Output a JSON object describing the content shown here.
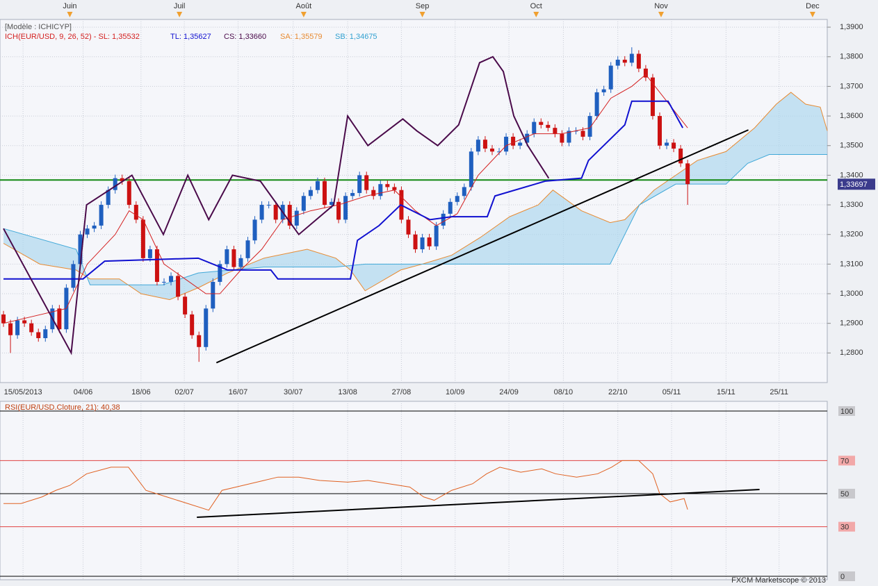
{
  "chart_data": [
    {
      "type": "candlestick",
      "model": "[Modèle : ICHICYP]",
      "indicator_labels": [
        {
          "text": "ICH(EUR/USD, 9, 26, 52) -  SL: 1,35532",
          "color": "#d42020"
        },
        {
          "text": "TL: 1,35627",
          "color": "#1010d0"
        },
        {
          "text": "CS: 1,33660",
          "color": "#4a0a4a"
        },
        {
          "text": "SA: 1,35579",
          "color": "#e88a30"
        },
        {
          "text": "SB: 1,34675",
          "color": "#30a0d0"
        }
      ],
      "up_color": "#1f5fbf",
      "down_color": "#cc1111",
      "open": [
        1.293,
        1.29,
        1.286,
        1.291,
        1.29,
        1.287,
        1.285,
        1.288,
        1.295,
        1.288,
        1.302,
        1.31,
        1.32,
        1.322,
        1.323,
        1.33,
        1.335,
        1.339,
        1.338,
        1.33,
        1.325,
        1.312,
        1.315,
        1.304,
        1.304,
        1.306,
        1.299,
        1.293,
        1.286,
        1.282,
        1.295,
        1.304,
        1.31,
        1.315,
        1.309,
        1.312,
        1.318,
        1.325,
        1.33,
        1.33,
        1.325,
        1.33,
        1.323,
        1.328,
        1.333,
        1.335,
        1.338,
        1.33,
        1.331,
        1.325,
        1.333,
        1.334,
        1.34,
        1.335,
        1.333,
        1.337,
        1.336,
        1.335,
        1.325,
        1.32,
        1.315,
        1.319,
        1.316,
        1.323,
        1.327,
        1.331,
        1.333,
        1.336,
        1.348,
        1.352,
        1.349,
        1.348,
        1.348,
        1.353,
        1.35,
        1.351,
        1.354,
        1.358,
        1.357,
        1.356,
        1.354,
        1.351,
        1.355,
        1.355,
        1.353,
        1.36,
        1.368,
        1.369,
        1.377,
        1.379,
        1.378,
        1.381,
        1.376,
        1.373,
        1.36,
        1.35,
        1.351,
        1.349,
        1.344
      ],
      "high": [
        1.2942,
        1.2912,
        1.2922,
        1.2922,
        1.2912,
        1.2882,
        1.2892,
        1.2962,
        1.2962,
        1.3032,
        1.3112,
        1.3212,
        1.3232,
        1.3242,
        1.3312,
        1.3362,
        1.3402,
        1.3402,
        1.3392,
        1.3312,
        1.3262,
        1.3162,
        1.3162,
        1.3052,
        1.3072,
        1.3072,
        1.3002,
        1.2942,
        1.2872,
        1.2962,
        1.3052,
        1.3112,
        1.3162,
        1.3162,
        1.3132,
        1.3192,
        1.3262,
        1.3312,
        1.3312,
        1.3312,
        1.3312,
        1.3312,
        1.3292,
        1.3342,
        1.3362,
        1.3392,
        1.3392,
        1.3322,
        1.3322,
        1.3342,
        1.3352,
        1.3412,
        1.3412,
        1.3362,
        1.3382,
        1.3382,
        1.3372,
        1.3362,
        1.3262,
        1.3212,
        1.3202,
        1.3202,
        1.3242,
        1.3282,
        1.3322,
        1.3342,
        1.3372,
        1.3492,
        1.3532,
        1.3532,
        1.3502,
        1.3492,
        1.3542,
        1.3542,
        1.3522,
        1.3552,
        1.3592,
        1.3592,
        1.3582,
        1.3572,
        1.3552,
        1.3562,
        1.3562,
        1.3562,
        1.3612,
        1.3692,
        1.3702,
        1.3782,
        1.3802,
        1.3802,
        1.3832,
        1.3822,
        1.3772,
        1.3742,
        1.3612,
        1.3522,
        1.3522,
        1.3502,
        1.3452
      ],
      "low": [
        1.2888,
        1.28,
        1.2848,
        1.2888,
        1.2858,
        1.2838,
        1.2838,
        1.2868,
        1.2868,
        1.2868,
        1.3008,
        1.3088,
        1.3188,
        1.3208,
        1.3218,
        1.3288,
        1.3338,
        1.3368,
        1.3288,
        1.3238,
        1.3108,
        1.3108,
        1.3028,
        1.3028,
        1.3028,
        1.2978,
        1.2918,
        1.2848,
        1.277,
        1.2808,
        1.2938,
        1.3028,
        1.3088,
        1.3078,
        1.3078,
        1.3108,
        1.3168,
        1.3238,
        1.3288,
        1.3238,
        1.3238,
        1.3218,
        1.3218,
        1.3268,
        1.3318,
        1.3338,
        1.3288,
        1.3288,
        1.3238,
        1.3238,
        1.3318,
        1.3328,
        1.3338,
        1.3318,
        1.3318,
        1.3348,
        1.3338,
        1.3238,
        1.3188,
        1.3138,
        1.3138,
        1.3148,
        1.3148,
        1.3218,
        1.3258,
        1.3298,
        1.3318,
        1.3348,
        1.3468,
        1.3478,
        1.3468,
        1.3468,
        1.3468,
        1.3488,
        1.3488,
        1.3498,
        1.3528,
        1.3558,
        1.3548,
        1.3528,
        1.3498,
        1.3498,
        1.3538,
        1.3518,
        1.3518,
        1.3588,
        1.3668,
        1.3678,
        1.3758,
        1.3768,
        1.3768,
        1.3748,
        1.3718,
        1.3588,
        1.3488,
        1.3488,
        1.3478,
        1.3428,
        1.33
      ],
      "close": [
        1.29,
        1.286,
        1.291,
        1.29,
        1.287,
        1.285,
        1.288,
        1.295,
        1.288,
        1.302,
        1.31,
        1.32,
        1.322,
        1.323,
        1.33,
        1.335,
        1.339,
        1.338,
        1.33,
        1.325,
        1.312,
        1.315,
        1.304,
        1.304,
        1.306,
        1.299,
        1.293,
        1.286,
        1.282,
        1.295,
        1.304,
        1.31,
        1.315,
        1.309,
        1.312,
        1.318,
        1.325,
        1.33,
        1.33,
        1.325,
        1.33,
        1.323,
        1.328,
        1.333,
        1.335,
        1.338,
        1.33,
        1.331,
        1.325,
        1.333,
        1.334,
        1.34,
        1.335,
        1.333,
        1.337,
        1.336,
        1.335,
        1.325,
        1.32,
        1.315,
        1.319,
        1.316,
        1.323,
        1.327,
        1.331,
        1.333,
        1.336,
        1.348,
        1.352,
        1.349,
        1.348,
        1.348,
        1.353,
        1.35,
        1.351,
        1.354,
        1.358,
        1.357,
        1.356,
        1.354,
        1.351,
        1.355,
        1.355,
        1.353,
        1.36,
        1.368,
        1.369,
        1.377,
        1.379,
        1.378,
        1.381,
        1.376,
        1.373,
        1.36,
        1.35,
        1.351,
        1.349,
        1.344,
        1.337
      ],
      "senkou_a": {
        "color": "#e88a30",
        "x": [
          0,
          5.2,
          10.4,
          12.4,
          16.6,
          19.7,
          23.8,
          27.9,
          32.1,
          37.3,
          43.5,
          47.6,
          49.7,
          51.8,
          56.9,
          60,
          64.2,
          68.3,
          72.5,
          76.6,
          78.7,
          82.8,
          86.9,
          89,
          91.1,
          93.2,
          96.3,
          99.4,
          103.5,
          107.6,
          110.7,
          112.8,
          114.9,
          117,
          118
        ],
        "values": [
          1.317,
          1.31,
          1.308,
          1.305,
          1.305,
          1.3,
          1.298,
          1.302,
          1.307,
          1.312,
          1.315,
          1.312,
          1.308,
          1.301,
          1.308,
          1.31,
          1.313,
          1.319,
          1.326,
          1.33,
          1.335,
          1.328,
          1.324,
          1.325,
          1.33,
          1.335,
          1.34,
          1.345,
          1.348,
          1.356,
          1.364,
          1.368,
          1.364,
          1.363,
          1.355
        ]
      },
      "senkou_b": {
        "color": "#40a8d8",
        "x": [
          0,
          10.4,
          12.4,
          22.8,
          27.9,
          37.3,
          47.6,
          51.8,
          58,
          74.5,
          86.9,
          89,
          91.1,
          96.3,
          103.5,
          106.6,
          109.7,
          118
        ],
        "values": [
          1.322,
          1.315,
          1.303,
          1.303,
          1.307,
          1.309,
          1.309,
          1.31,
          1.31,
          1.31,
          1.31,
          1.32,
          1.33,
          1.337,
          1.337,
          1.344,
          1.347,
          1.347
        ]
      },
      "cloud_color": "#a9d5ee",
      "lines": [
        {
          "color": "#d42020",
          "width": 1,
          "x": [
            0,
            9,
            12,
            16,
            18,
            20,
            23,
            26,
            29,
            31,
            34,
            37,
            40,
            44,
            48,
            52,
            56,
            59,
            62,
            65,
            68,
            72,
            76,
            80,
            84,
            87,
            90,
            92,
            95,
            98
          ],
          "values": [
            1.29,
            1.295,
            1.31,
            1.32,
            1.328,
            1.325,
            1.31,
            1.305,
            1.3,
            1.3,
            1.308,
            1.315,
            1.325,
            1.328,
            1.33,
            1.333,
            1.335,
            1.328,
            1.323,
            1.327,
            1.34,
            1.35,
            1.354,
            1.354,
            1.356,
            1.366,
            1.37,
            1.374,
            1.365,
            1.356
          ]
        },
        {
          "color": "#1010d0",
          "width": 2,
          "x": [
            0,
            11.4,
            14.5,
            27.9,
            32.1,
            38.3,
            39.3,
            49.7,
            50.7,
            53.8,
            56.9,
            61.1,
            64.2,
            69.3,
            70.4,
            77.6,
            82.8,
            83.8,
            89,
            90,
            95.2,
            97.3
          ],
          "values": [
            1.305,
            1.305,
            1.311,
            1.312,
            1.308,
            1.308,
            1.305,
            1.305,
            1.318,
            1.323,
            1.33,
            1.325,
            1.326,
            1.326,
            1.333,
            1.338,
            1.339,
            1.345,
            1.357,
            1.365,
            1.365,
            1.356
          ]
        },
        {
          "color": "#4a0a4a",
          "width": 2,
          "x": [
            0,
            9.7,
            11.9,
            18.4,
            22.9,
            26.4,
            29.4,
            32.8,
            36.8,
            42.3,
            47.3,
            49.3,
            52.2,
            57.2,
            59.2,
            62.2,
            65.2,
            68.2,
            70.1,
            71.6,
            73.1,
            75.1,
            78.1
          ],
          "values": [
            1.322,
            1.28,
            1.33,
            1.34,
            1.32,
            1.34,
            1.325,
            1.34,
            1.338,
            1.32,
            1.33,
            1.36,
            1.35,
            1.359,
            1.355,
            1.35,
            1.357,
            1.378,
            1.38,
            1.375,
            1.36,
            1.35,
            1.339
          ]
        }
      ],
      "trendlines": [
        {
          "color": "#000000",
          "x": [
            30.5,
            106.7
          ],
          "values": [
            1.2767,
            1.3553
          ]
        }
      ],
      "hlines": [
        {
          "value": 1.3384,
          "color": "#118811"
        }
      ],
      "last_price": {
        "value": 1.33697,
        "label": "1,33697"
      },
      "xlim": [
        -0.5,
        118
      ],
      "ylim": [
        1.27,
        1.3926
      ],
      "yticks": [
        {
          "value": 1.28,
          "label": "1,2800"
        },
        {
          "value": 1.29,
          "label": "1,2900"
        },
        {
          "value": 1.3,
          "label": "1,3000"
        },
        {
          "value": 1.31,
          "label": "1,3100"
        },
        {
          "value": 1.32,
          "label": "1,3200"
        },
        {
          "value": 1.33,
          "label": "1,3300"
        },
        {
          "value": 1.34,
          "label": "1,3400"
        },
        {
          "value": 1.35,
          "label": "1,3500"
        },
        {
          "value": 1.36,
          "label": "1,3600"
        },
        {
          "value": 1.37,
          "label": "1,3700"
        },
        {
          "value": 1.38,
          "label": "1,3800"
        },
        {
          "value": 1.39,
          "label": "1,3900"
        }
      ],
      "xticks": [
        {
          "value": 2.8,
          "label": "15/05/2013"
        },
        {
          "value": 11.4,
          "label": "04/06"
        },
        {
          "value": 19.7,
          "label": "18/06"
        },
        {
          "value": 25.9,
          "label": "02/07"
        },
        {
          "value": 33.6,
          "label": "16/07"
        },
        {
          "value": 41.5,
          "label": "30/07"
        },
        {
          "value": 49.3,
          "label": "13/08"
        },
        {
          "value": 57,
          "label": "27/08"
        },
        {
          "value": 64.7,
          "label": "10/09"
        },
        {
          "value": 72.4,
          "label": "24/09"
        },
        {
          "value": 80.2,
          "label": "08/10"
        },
        {
          "value": 88,
          "label": "22/10"
        },
        {
          "value": 95.7,
          "label": "05/11"
        },
        {
          "value": 103.5,
          "label": "15/11"
        },
        {
          "value": 111.1,
          "label": "25/11"
        }
      ],
      "month_ticks": [
        {
          "value": 9.5,
          "label": "Juin"
        },
        {
          "value": 25.2,
          "label": "Juil"
        },
        {
          "value": 43,
          "label": "Août"
        },
        {
          "value": 60,
          "label": "Sep"
        },
        {
          "value": 76.3,
          "label": "Oct"
        },
        {
          "value": 94.2,
          "label": "Nov"
        },
        {
          "value": 115.9,
          "label": "Dec"
        }
      ],
      "month_marker_color": "#f0a030",
      "grid": true
    },
    {
      "type": "line",
      "title": "RSI(EUR/USD.Cloture, 21): 40,38",
      "color": "#e06020",
      "x": [
        0,
        2.5,
        5.5,
        7.5,
        9.5,
        11.9,
        15.4,
        17.9,
        20.4,
        23.4,
        26.4,
        29.4,
        31.3,
        34.3,
        37.3,
        39.3,
        42.3,
        45.3,
        49.3,
        52.2,
        55.2,
        58.2,
        60.2,
        61.7,
        64.2,
        67.2,
        69.2,
        71.1,
        74.1,
        77.1,
        79.1,
        82.1,
        85.1,
        87.1,
        88.6,
        91,
        93,
        94,
        95.5,
        97.5,
        98
      ],
      "values": [
        44,
        44,
        48,
        52,
        55,
        62,
        66,
        66,
        52,
        48,
        44,
        40,
        52,
        55,
        58,
        60,
        60,
        58,
        57,
        58,
        56,
        54,
        48,
        46,
        52,
        56,
        62,
        66,
        63,
        65,
        62,
        60,
        62,
        66,
        70,
        70,
        62,
        50,
        45,
        47,
        40.38
      ],
      "trendlines": [
        {
          "color": "#000000",
          "x": [
            27.7,
            108.3
          ],
          "values": [
            35.7,
            52.5
          ]
        }
      ],
      "xlim": [
        -0.5,
        118
      ],
      "ylim": [
        0,
        100
      ],
      "yticks": [
        100,
        70,
        50,
        30,
        0
      ],
      "tick_colors": [
        "#000000",
        "#e04040",
        "#000000",
        "#e04040",
        "#000000"
      ],
      "grid": true
    }
  ],
  "footer": "FXCM Marketscope © 2013"
}
